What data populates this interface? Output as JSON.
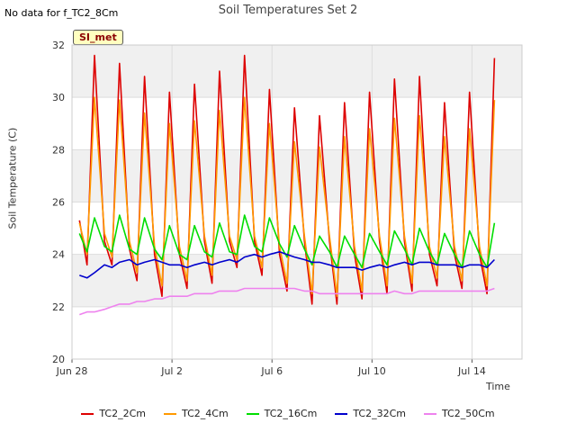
{
  "header": {
    "nodata_text": "No data for f_TC2_8Cm",
    "title": "Soil Temperatures Set 2",
    "badge": "SI_met"
  },
  "chart_data": {
    "type": "line",
    "title": "Soil Temperatures Set 2",
    "xlabel": "Time",
    "ylabel": "Soil Temperature (C)",
    "ylim": [
      20,
      32
    ],
    "xlim": [
      0,
      18
    ],
    "grid": true,
    "legend_position": "bottom",
    "x_unit": "days since Jun 28",
    "xticks": [
      {
        "value": 0,
        "label": "Jun 28"
      },
      {
        "value": 4,
        "label": "Jul 2"
      },
      {
        "value": 8,
        "label": "Jul 6"
      },
      {
        "value": 12,
        "label": "Jul 10"
      },
      {
        "value": 16,
        "label": "Jul 14"
      }
    ],
    "yticks": [
      20,
      22,
      24,
      26,
      28,
      30,
      32
    ],
    "x": [
      0.3,
      0.6,
      0.9,
      1.3,
      1.6,
      1.9,
      2.3,
      2.6,
      2.9,
      3.3,
      3.6,
      3.9,
      4.3,
      4.6,
      4.9,
      5.3,
      5.6,
      5.9,
      6.3,
      6.6,
      6.9,
      7.3,
      7.6,
      7.9,
      8.3,
      8.6,
      8.9,
      9.3,
      9.6,
      9.9,
      10.3,
      10.6,
      10.9,
      11.3,
      11.6,
      11.9,
      12.3,
      12.6,
      12.9,
      13.3,
      13.6,
      13.9,
      14.3,
      14.6,
      14.9,
      15.3,
      15.6,
      15.9,
      16.3,
      16.6,
      16.9
    ],
    "series": [
      {
        "name": "TC2_2Cm",
        "color": "#dd0000",
        "values": [
          25.3,
          23.6,
          31.6,
          24.5,
          23.6,
          31.3,
          24.2,
          23.0,
          30.8,
          24.0,
          22.4,
          30.2,
          24.0,
          22.7,
          30.5,
          24.5,
          22.9,
          31.0,
          24.5,
          23.5,
          31.6,
          24.5,
          23.2,
          30.3,
          24.0,
          22.6,
          29.6,
          24.5,
          22.1,
          29.3,
          24.5,
          22.1,
          29.8,
          24.0,
          22.3,
          30.2,
          24.5,
          22.5,
          30.7,
          24.5,
          22.6,
          30.8,
          24.0,
          22.8,
          29.8,
          24.0,
          22.7,
          30.2,
          24.0,
          22.5,
          31.5
        ]
      },
      {
        "name": "TC2_4Cm",
        "color": "#ff9900",
        "values": [
          25.2,
          24.0,
          30.0,
          24.8,
          23.9,
          29.9,
          24.5,
          23.3,
          29.4,
          24.3,
          22.8,
          29.0,
          24.3,
          23.0,
          29.1,
          24.7,
          23.2,
          29.5,
          24.7,
          23.8,
          30.0,
          24.7,
          23.5,
          29.0,
          24.3,
          22.9,
          28.3,
          24.7,
          22.5,
          28.1,
          24.7,
          22.4,
          28.5,
          24.3,
          22.6,
          28.8,
          24.7,
          22.8,
          29.2,
          24.7,
          22.9,
          29.3,
          24.3,
          23.1,
          28.5,
          24.3,
          23.0,
          28.8,
          24.3,
          22.8,
          29.9
        ]
      },
      {
        "name": "TC2_16Cm",
        "color": "#00dd00",
        "values": [
          24.8,
          24.1,
          25.4,
          24.3,
          24.1,
          25.5,
          24.2,
          24.0,
          25.4,
          24.2,
          23.8,
          25.1,
          24.0,
          23.8,
          25.1,
          24.1,
          23.9,
          25.2,
          24.1,
          24.0,
          25.5,
          24.3,
          24.1,
          25.4,
          24.4,
          23.9,
          25.1,
          24.2,
          23.6,
          24.7,
          24.1,
          23.5,
          24.7,
          24.0,
          23.5,
          24.8,
          24.1,
          23.6,
          24.9,
          24.2,
          23.6,
          25.0,
          24.1,
          23.6,
          24.8,
          24.0,
          23.5,
          24.9,
          24.0,
          23.5,
          25.2
        ]
      },
      {
        "name": "TC2_32Cm",
        "color": "#0000cc",
        "values": [
          23.2,
          23.1,
          23.3,
          23.6,
          23.5,
          23.7,
          23.8,
          23.6,
          23.7,
          23.8,
          23.7,
          23.6,
          23.6,
          23.5,
          23.6,
          23.7,
          23.6,
          23.7,
          23.8,
          23.7,
          23.9,
          24.0,
          23.9,
          24.0,
          24.1,
          24.0,
          23.9,
          23.8,
          23.7,
          23.7,
          23.6,
          23.5,
          23.5,
          23.5,
          23.4,
          23.5,
          23.6,
          23.5,
          23.6,
          23.7,
          23.6,
          23.7,
          23.7,
          23.6,
          23.6,
          23.6,
          23.5,
          23.6,
          23.6,
          23.5,
          23.8
        ]
      },
      {
        "name": "TC2_50Cm",
        "color": "#ee82ee",
        "values": [
          21.7,
          21.8,
          21.8,
          21.9,
          22.0,
          22.1,
          22.1,
          22.2,
          22.2,
          22.3,
          22.3,
          22.4,
          22.4,
          22.4,
          22.5,
          22.5,
          22.5,
          22.6,
          22.6,
          22.6,
          22.7,
          22.7,
          22.7,
          22.7,
          22.7,
          22.7,
          22.7,
          22.6,
          22.6,
          22.5,
          22.5,
          22.5,
          22.5,
          22.5,
          22.5,
          22.5,
          22.5,
          22.5,
          22.6,
          22.5,
          22.5,
          22.6,
          22.6,
          22.6,
          22.6,
          22.6,
          22.6,
          22.6,
          22.6,
          22.6,
          22.7
        ]
      }
    ]
  }
}
